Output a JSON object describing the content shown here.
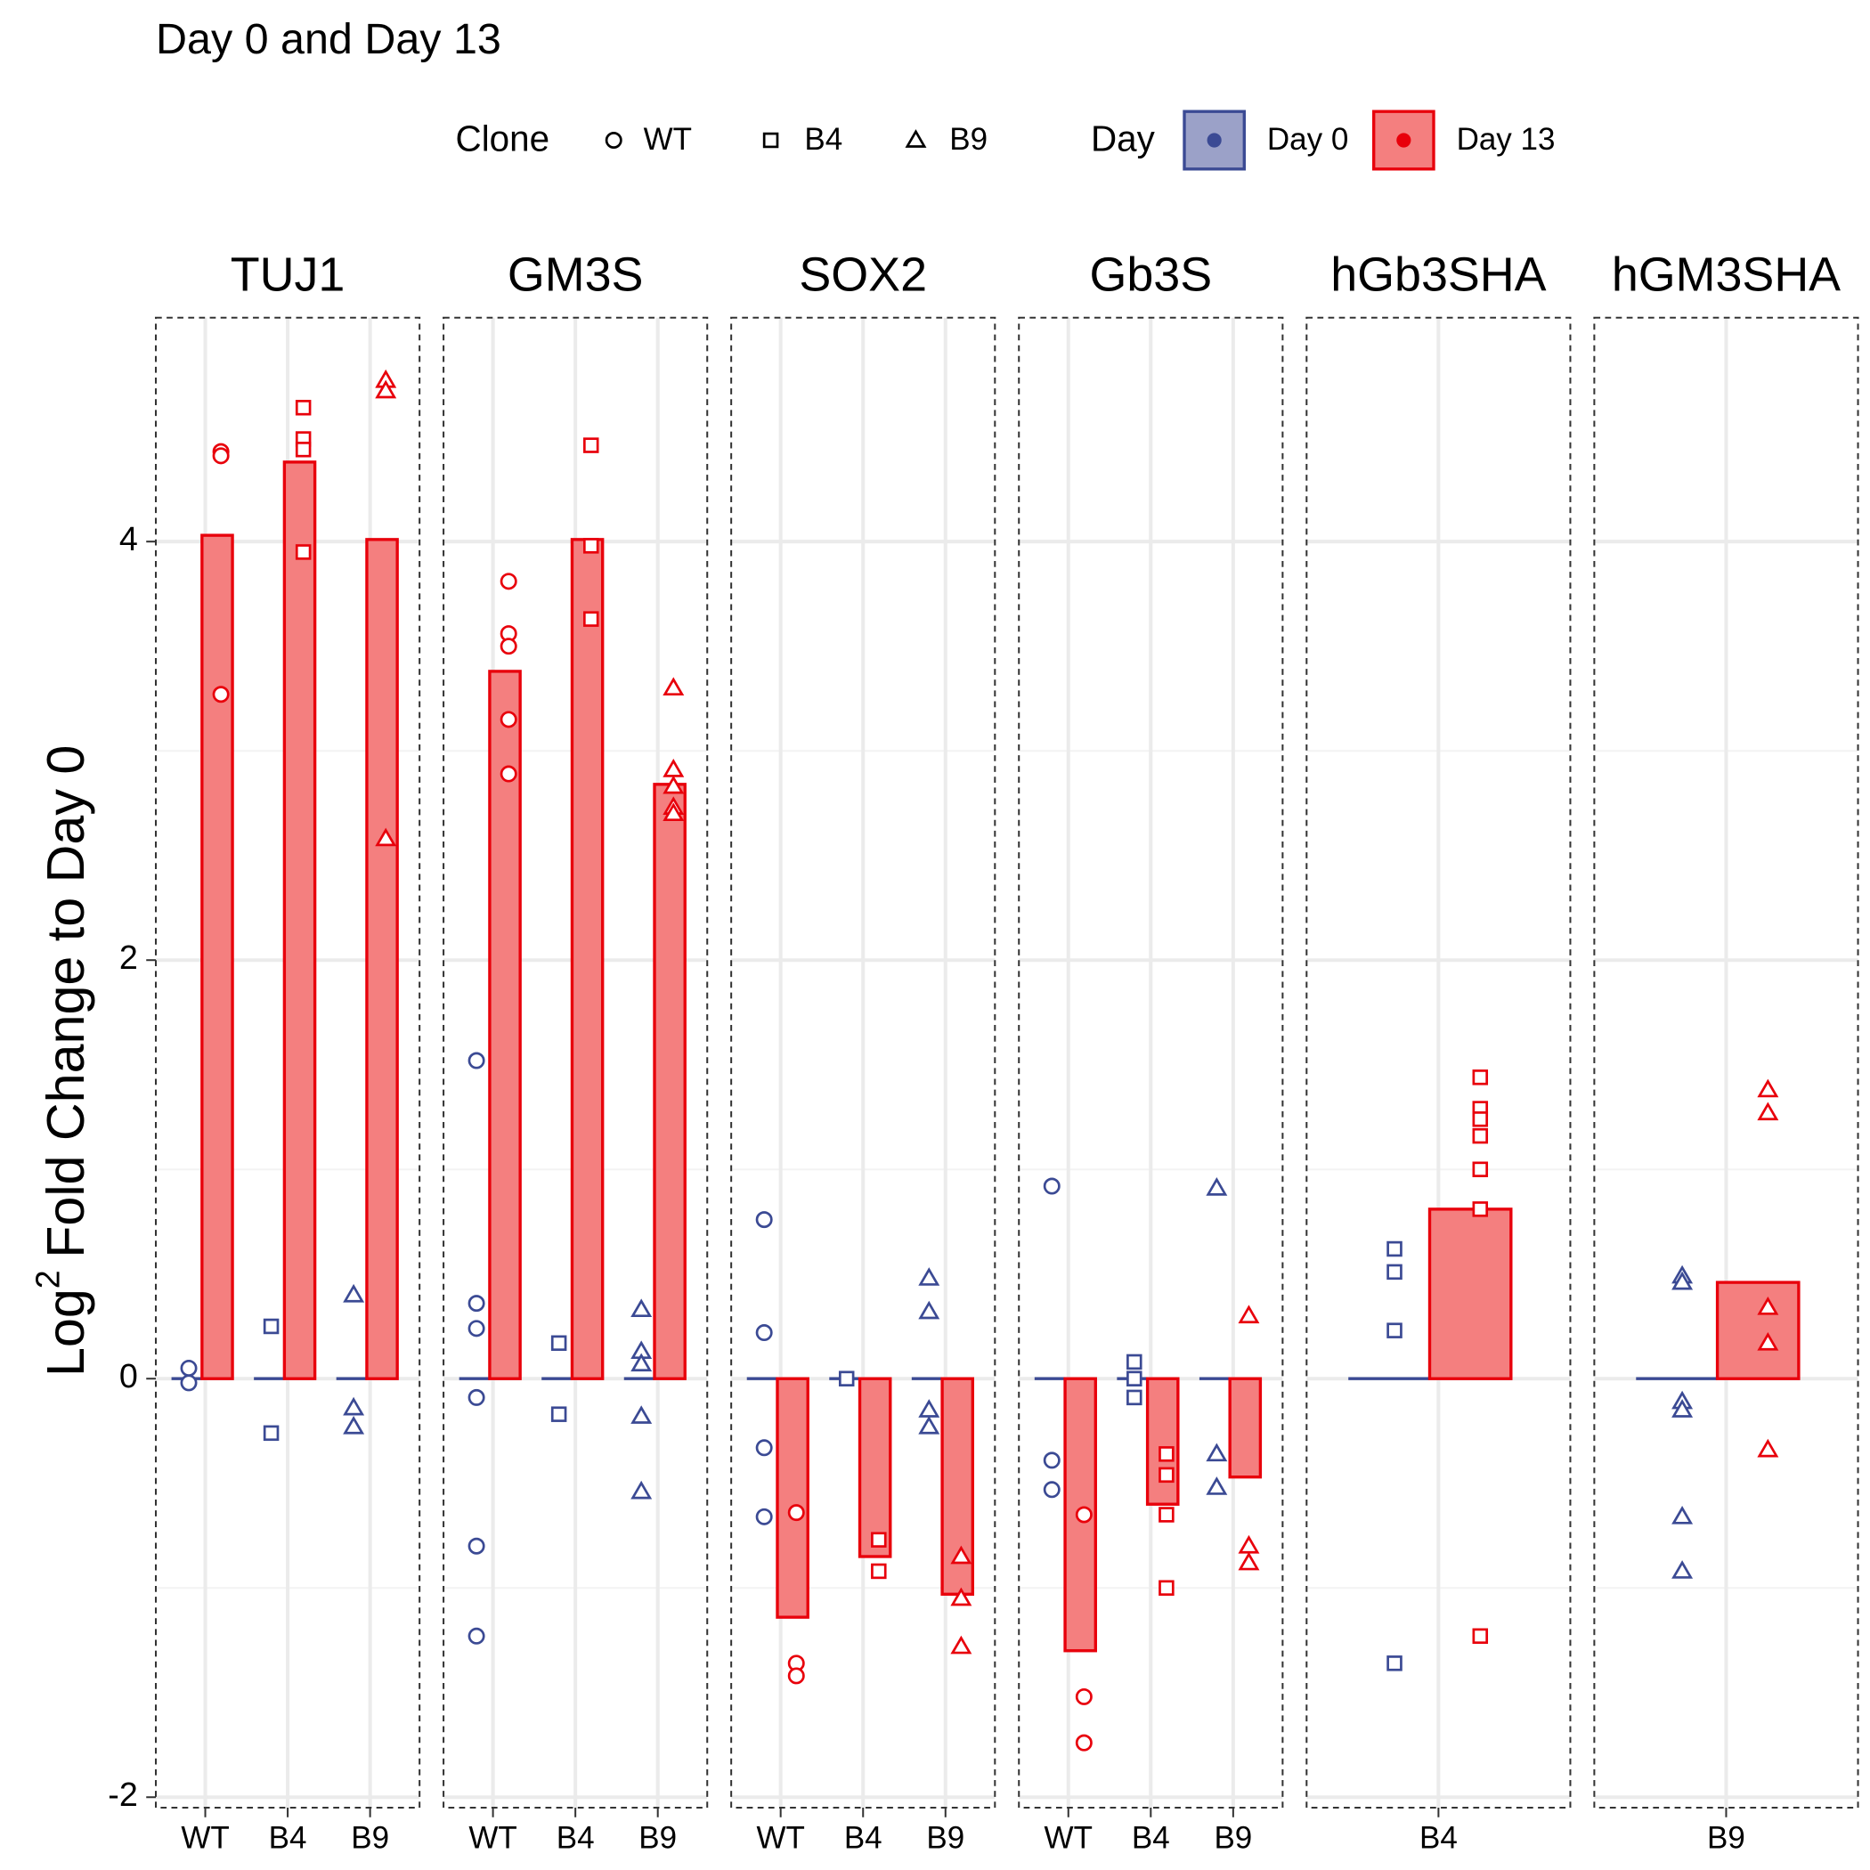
{
  "chart_data": {
    "type": "bar",
    "title": "Day 0 and Day  13",
    "ylabel": "Log",
    "ylabel_sup": "2",
    "ylabel_rest": "Fold Change to Day 0",
    "ylim": [
      -2.05,
      5.07
    ],
    "yticks": [
      -2,
      0,
      2,
      4
    ],
    "minor_yticks": [
      -1,
      1,
      3
    ],
    "grid": true,
    "clone_legend": {
      "title": "Clone",
      "names": [
        "WT",
        "B4",
        "B9"
      ],
      "shapes": [
        "circle",
        "square",
        "triangle"
      ]
    },
    "day_legend": {
      "title": "Day",
      "names": [
        "Day 0",
        "Day 13"
      ],
      "colors": [
        "#3b4a94",
        "#e8000b"
      ],
      "fills": [
        "#9ba1c8",
        "#f47f7f"
      ]
    },
    "panels": [
      {
        "title": "TUJ1",
        "categories": [
          "WT",
          "B4",
          "B9"
        ],
        "day0": [
          0,
          0,
          0
        ],
        "day13": [
          4.03,
          4.38,
          4.01
        ],
        "points_day0": [
          [
            0.05,
            -0.02
          ],
          [
            0.25,
            -0.26
          ],
          [
            0.4,
            -0.14,
            -0.23
          ]
        ],
        "points_day13": [
          [
            4.43,
            4.41,
            3.27
          ],
          [
            4.64,
            4.49,
            4.44,
            3.95
          ],
          [
            4.77,
            4.72,
            2.58
          ]
        ]
      },
      {
        "title": "GM3S",
        "categories": [
          "WT",
          "B4",
          "B9"
        ],
        "day0": [
          0,
          0,
          0
        ],
        "day13": [
          3.38,
          4.01,
          2.84
        ],
        "points_day0": [
          [
            1.52,
            0.36,
            0.24,
            -0.09,
            -0.8,
            -1.23
          ],
          [
            0.17,
            -0.17
          ],
          [
            0.33,
            0.13,
            0.07,
            -0.18,
            -0.54
          ]
        ],
        "points_day13": [
          [
            3.81,
            3.56,
            3.5,
            3.15,
            2.89
          ],
          [
            4.46,
            3.98,
            3.63
          ],
          [
            3.3,
            2.91,
            2.83,
            2.73,
            2.7
          ]
        ]
      },
      {
        "title": "SOX2",
        "categories": [
          "WT",
          "B4",
          "B9"
        ],
        "day0": [
          0,
          0,
          0
        ],
        "day13": [
          -1.14,
          -0.85,
          -1.03
        ],
        "points_day0": [
          [
            0.76,
            0.22,
            -0.33,
            -0.66
          ],
          [
            0.0
          ],
          [
            0.48,
            0.32,
            -0.15,
            -0.23
          ]
        ],
        "points_day13": [
          [
            -0.64,
            -1.36,
            -1.42
          ],
          [
            -0.77,
            -0.92
          ],
          [
            -0.85,
            -1.05,
            -1.28
          ]
        ]
      },
      {
        "title": "Gb3S",
        "categories": [
          "WT",
          "B4",
          "B9"
        ],
        "day0": [
          0,
          0,
          0
        ],
        "day13": [
          -1.3,
          -0.6,
          -0.47
        ],
        "points_day0": [
          [
            0.92,
            -0.39,
            -0.53
          ],
          [
            0.08,
            0.0,
            -0.09
          ],
          [
            0.91,
            -0.36,
            -0.52
          ]
        ],
        "points_day13": [
          [
            -0.65,
            -1.52,
            -1.74
          ],
          [
            -0.36,
            -0.46,
            -0.65,
            -1.0
          ],
          [
            0.3,
            -0.8,
            -0.88
          ]
        ]
      },
      {
        "title": "hGb3SHA",
        "categories": [
          "B4"
        ],
        "day0": [
          0
        ],
        "day13": [
          0.81
        ],
        "points_day0": [
          [
            0.62,
            0.51,
            0.23,
            -1.36
          ]
        ],
        "points_day13": [
          [
            1.44,
            1.29,
            1.24,
            1.16,
            1.0,
            0.81,
            -1.23
          ]
        ]
      },
      {
        "title": "hGM3SHA",
        "categories": [
          "B9"
        ],
        "day0": [
          0
        ],
        "day13": [
          0.46
        ],
        "points_day0": [
          [
            0.49,
            0.46,
            -0.11,
            -0.15,
            -0.66,
            -0.92
          ]
        ],
        "points_day13": [
          [
            1.38,
            1.27,
            0.34,
            0.17,
            -0.34
          ]
        ]
      }
    ]
  }
}
